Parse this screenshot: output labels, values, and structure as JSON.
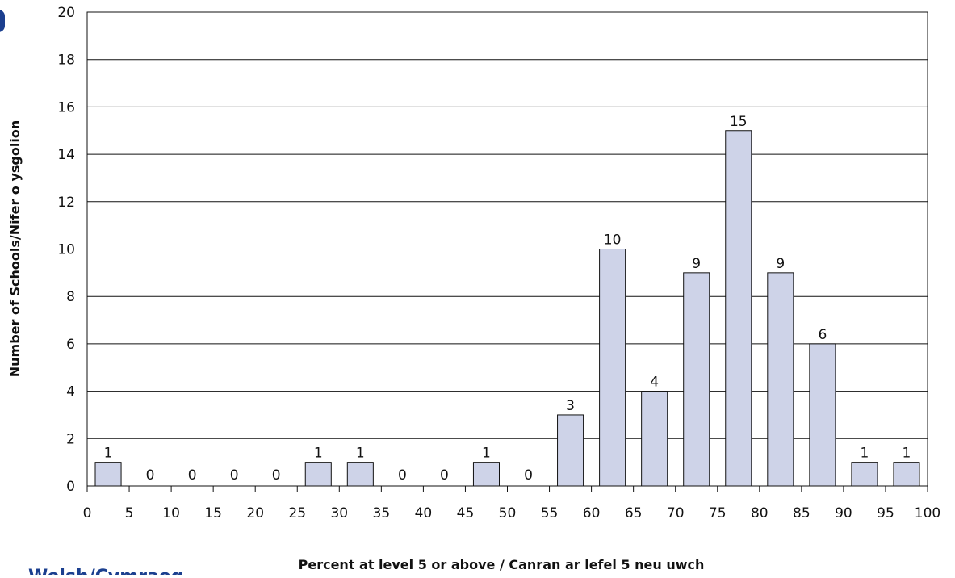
{
  "chart_data": {
    "type": "bar",
    "categories": [
      "0-5",
      "5-10",
      "10-15",
      "15-20",
      "20-25",
      "25-30",
      "30-35",
      "35-40",
      "40-45",
      "45-50",
      "50-55",
      "55-60",
      "60-65",
      "65-70",
      "70-75",
      "75-80",
      "80-85",
      "85-90",
      "90-95",
      "95-100"
    ],
    "values": [
      1,
      0,
      0,
      0,
      0,
      1,
      1,
      0,
      0,
      1,
      0,
      3,
      10,
      4,
      9,
      15,
      9,
      6,
      1,
      1
    ],
    "xlabel": "Percent at level 5 or above / Canran ar lefel 5 neu uwch",
    "ylabel": "Number of Schools/Nifer o ysgolion",
    "xlim": [
      0,
      100
    ],
    "ylim": [
      0,
      20
    ],
    "x_ticks": [
      "0",
      "5",
      "10",
      "15",
      "20",
      "25",
      "30",
      "35",
      "40",
      "45",
      "50",
      "55",
      "60",
      "65",
      "70",
      "75",
      "80",
      "85",
      "90",
      "95",
      "100"
    ],
    "y_ticks": [
      "0",
      "2",
      "4",
      "6",
      "8",
      "10",
      "12",
      "14",
      "16",
      "18",
      "20"
    ],
    "grid": "horizontal",
    "bar_color": "#ced3e8",
    "bar_stroke": "#111111"
  },
  "footer": {
    "label": "Welsh/Cymraeg"
  }
}
